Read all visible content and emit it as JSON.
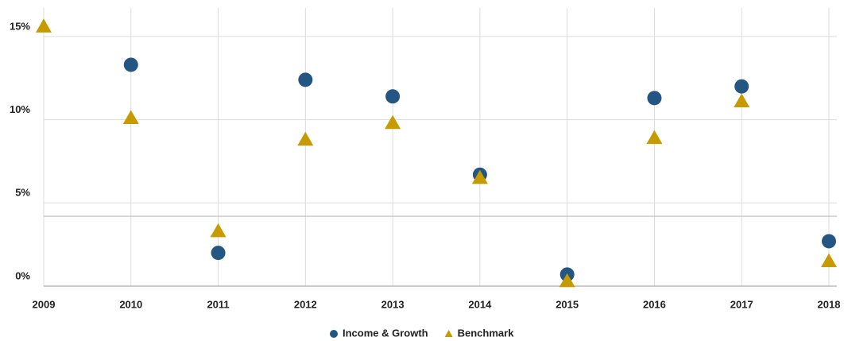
{
  "chart_data": {
    "type": "scatter",
    "categories": [
      "2009",
      "2010",
      "2011",
      "2012",
      "2013",
      "2014",
      "2015",
      "2016",
      "2017",
      "2018"
    ],
    "series": [
      {
        "name": "Income & Growth",
        "color": "#245684",
        "marker": "circle",
        "values": [
          null,
          13.3,
          2.0,
          12.4,
          11.4,
          6.7,
          0.7,
          11.3,
          12.0,
          2.7
        ]
      },
      {
        "name": "Benchmark",
        "color": "#c79a00",
        "marker": "triangle",
        "values": [
          15.6,
          10.1,
          3.3,
          8.8,
          9.8,
          6.5,
          0.3,
          8.9,
          11.1,
          1.5
        ]
      }
    ],
    "ylim": [
      0,
      17
    ],
    "yticks": [
      {
        "value": 0,
        "label": "0%"
      },
      {
        "value": 5,
        "label": "5%"
      },
      {
        "value": 10,
        "label": "10%"
      },
      {
        "value": 15,
        "label": "15%"
      }
    ],
    "reference_line": 4.2,
    "grid": true,
    "legend": "bottom"
  }
}
